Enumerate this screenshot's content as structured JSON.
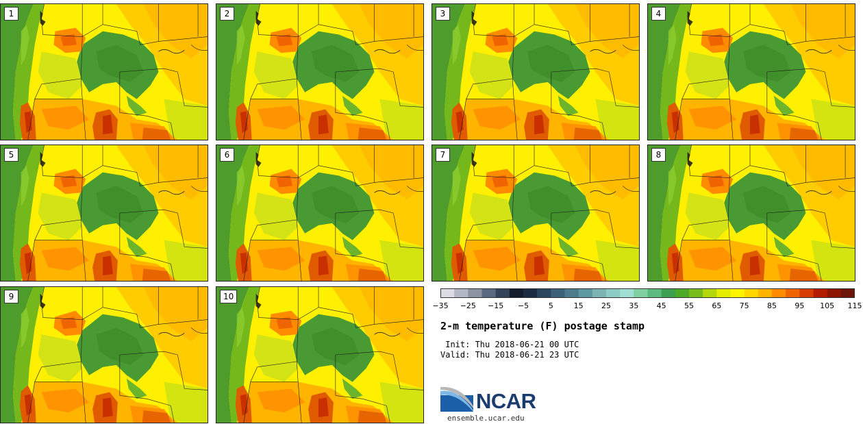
{
  "panels": [
    {
      "label": "1"
    },
    {
      "label": "2"
    },
    {
      "label": "3"
    },
    {
      "label": "4"
    },
    {
      "label": "5"
    },
    {
      "label": "6"
    },
    {
      "label": "7"
    },
    {
      "label": "8"
    },
    {
      "label": "9"
    },
    {
      "label": "10"
    }
  ],
  "colorbar": {
    "tick_labels": [
      "−35",
      "−25",
      "−15",
      "−5",
      "5",
      "15",
      "25",
      "35",
      "45",
      "55",
      "65",
      "75",
      "85",
      "95",
      "105",
      "115"
    ],
    "colors": [
      "#dcdce4",
      "#b4b8c4",
      "#8c94a4",
      "#5c6a80",
      "#34425a",
      "#141c2c",
      "#1c2c40",
      "#2c4660",
      "#3c6078",
      "#4c7c8c",
      "#5c98a0",
      "#7cb4b4",
      "#8cccc4",
      "#a0e0d4",
      "#80d0a0",
      "#5cbc80",
      "#3ca050",
      "#4caa28",
      "#78bc1c",
      "#b4d80c",
      "#e4ec00",
      "#fff400",
      "#ffd800",
      "#ffb400",
      "#ff8c00",
      "#f06400",
      "#d83c00",
      "#b41c00",
      "#8c1400",
      "#6c1408"
    ]
  },
  "title": "2-m temperature (F) postage stamp",
  "init_line": " Init: Thu 2018-06-21 00 UTC",
  "valid_line": "Valid: Thu 2018-06-21 23 UTC",
  "logo": {
    "name": "NCAR",
    "url": "ensemble.ucar.edu"
  },
  "map_colors": {
    "ocean": "#4e9c2c",
    "coast_band": "#74b81c",
    "cool_mountain": "#4a9a34",
    "warm": "#ffef00",
    "hot": "#ff8c00",
    "hottest": "#e05a00"
  }
}
